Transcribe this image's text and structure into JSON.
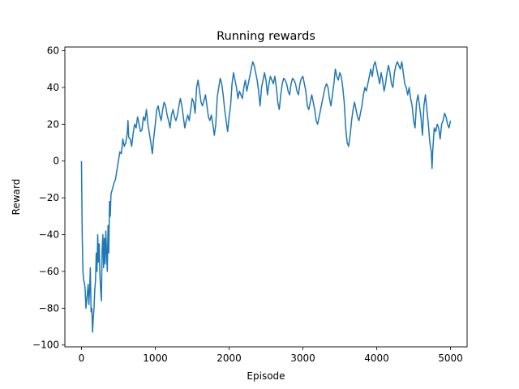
{
  "chart_data": {
    "type": "line",
    "title": "Running rewards",
    "xlabel": "Episode",
    "ylabel": "Reward",
    "xlim": [
      -225,
      5225
    ],
    "ylim": [
      -101,
      62
    ],
    "xticks": [
      0,
      1000,
      2000,
      3000,
      4000,
      5000
    ],
    "yticks": [
      -100,
      -80,
      -60,
      -40,
      -20,
      0,
      20,
      40,
      60
    ],
    "grid": false,
    "legend": "none",
    "series": [
      {
        "color": "#1f77b4",
        "points": [
          [
            0,
            0
          ],
          [
            10,
            -40
          ],
          [
            20,
            -60
          ],
          [
            30,
            -65
          ],
          [
            40,
            -66
          ],
          [
            50,
            -70
          ],
          [
            60,
            -80
          ],
          [
            70,
            -76
          ],
          [
            80,
            -72
          ],
          [
            90,
            -67
          ],
          [
            100,
            -78
          ],
          [
            110,
            -70
          ],
          [
            120,
            -58
          ],
          [
            130,
            -82
          ],
          [
            140,
            -80
          ],
          [
            150,
            -93
          ],
          [
            160,
            -85
          ],
          [
            170,
            -80
          ],
          [
            180,
            -70
          ],
          [
            190,
            -65
          ],
          [
            200,
            -50
          ],
          [
            210,
            -60
          ],
          [
            220,
            -40
          ],
          [
            230,
            -55
          ],
          [
            240,
            -45
          ],
          [
            250,
            -62
          ],
          [
            260,
            -70
          ],
          [
            270,
            -76
          ],
          [
            280,
            -48
          ],
          [
            290,
            -40
          ],
          [
            300,
            -58
          ],
          [
            310,
            -42
          ],
          [
            320,
            -56
          ],
          [
            330,
            -38
          ],
          [
            340,
            -50
          ],
          [
            350,
            -60
          ],
          [
            360,
            -35
          ],
          [
            370,
            -50
          ],
          [
            380,
            -22
          ],
          [
            390,
            -30
          ],
          [
            400,
            -18
          ],
          [
            420,
            -15
          ],
          [
            440,
            -12
          ],
          [
            460,
            -10
          ],
          [
            480,
            -5
          ],
          [
            500,
            0
          ],
          [
            520,
            5
          ],
          [
            540,
            4
          ],
          [
            560,
            12
          ],
          [
            580,
            8
          ],
          [
            600,
            10
          ],
          [
            620,
            15
          ],
          [
            630,
            22
          ],
          [
            640,
            13
          ],
          [
            660,
            12
          ],
          [
            680,
            8
          ],
          [
            700,
            15
          ],
          [
            720,
            20
          ],
          [
            740,
            18
          ],
          [
            760,
            24
          ],
          [
            780,
            20
          ],
          [
            800,
            16
          ],
          [
            820,
            17
          ],
          [
            840,
            24
          ],
          [
            860,
            22
          ],
          [
            880,
            28
          ],
          [
            900,
            20
          ],
          [
            920,
            15
          ],
          [
            940,
            10
          ],
          [
            960,
            4
          ],
          [
            980,
            13
          ],
          [
            1000,
            20
          ],
          [
            1020,
            28
          ],
          [
            1040,
            30
          ],
          [
            1060,
            25
          ],
          [
            1080,
            22
          ],
          [
            1100,
            28
          ],
          [
            1120,
            32
          ],
          [
            1140,
            30
          ],
          [
            1160,
            25
          ],
          [
            1180,
            22
          ],
          [
            1200,
            18
          ],
          [
            1220,
            25
          ],
          [
            1240,
            28
          ],
          [
            1260,
            24
          ],
          [
            1280,
            22
          ],
          [
            1300,
            25
          ],
          [
            1320,
            30
          ],
          [
            1340,
            34
          ],
          [
            1360,
            30
          ],
          [
            1380,
            24
          ],
          [
            1400,
            18
          ],
          [
            1420,
            22
          ],
          [
            1440,
            25
          ],
          [
            1460,
            22
          ],
          [
            1480,
            28
          ],
          [
            1500,
            34
          ],
          [
            1520,
            32
          ],
          [
            1540,
            26
          ],
          [
            1560,
            40
          ],
          [
            1580,
            44
          ],
          [
            1600,
            38
          ],
          [
            1620,
            32
          ],
          [
            1640,
            30
          ],
          [
            1660,
            33
          ],
          [
            1680,
            36
          ],
          [
            1700,
            30
          ],
          [
            1720,
            24
          ],
          [
            1740,
            22
          ],
          [
            1760,
            25
          ],
          [
            1780,
            20
          ],
          [
            1800,
            14
          ],
          [
            1820,
            20
          ],
          [
            1840,
            35
          ],
          [
            1860,
            40
          ],
          [
            1880,
            45
          ],
          [
            1900,
            42
          ],
          [
            1920,
            36
          ],
          [
            1940,
            28
          ],
          [
            1960,
            22
          ],
          [
            1980,
            16
          ],
          [
            2000,
            24
          ],
          [
            2020,
            30
          ],
          [
            2040,
            42
          ],
          [
            2060,
            48
          ],
          [
            2080,
            44
          ],
          [
            2100,
            40
          ],
          [
            2120,
            34
          ],
          [
            2140,
            38
          ],
          [
            2160,
            36
          ],
          [
            2180,
            34
          ],
          [
            2200,
            40
          ],
          [
            2220,
            44
          ],
          [
            2240,
            38
          ],
          [
            2260,
            42
          ],
          [
            2280,
            46
          ],
          [
            2300,
            50
          ],
          [
            2320,
            54
          ],
          [
            2340,
            52
          ],
          [
            2360,
            48
          ],
          [
            2380,
            44
          ],
          [
            2400,
            38
          ],
          [
            2420,
            30
          ],
          [
            2440,
            40
          ],
          [
            2460,
            44
          ],
          [
            2480,
            48
          ],
          [
            2500,
            44
          ],
          [
            2520,
            36
          ],
          [
            2540,
            42
          ],
          [
            2560,
            46
          ],
          [
            2580,
            44
          ],
          [
            2600,
            42
          ],
          [
            2620,
            46
          ],
          [
            2640,
            40
          ],
          [
            2660,
            32
          ],
          [
            2680,
            28
          ],
          [
            2700,
            36
          ],
          [
            2720,
            42
          ],
          [
            2740,
            45
          ],
          [
            2760,
            44
          ],
          [
            2780,
            42
          ],
          [
            2800,
            38
          ],
          [
            2820,
            36
          ],
          [
            2840,
            42
          ],
          [
            2860,
            45
          ],
          [
            2880,
            44
          ],
          [
            2900,
            42
          ],
          [
            2920,
            38
          ],
          [
            2940,
            36
          ],
          [
            2960,
            42
          ],
          [
            2980,
            45
          ],
          [
            3000,
            46
          ],
          [
            3020,
            42
          ],
          [
            3040,
            38
          ],
          [
            3060,
            30
          ],
          [
            3080,
            28
          ],
          [
            3100,
            32
          ],
          [
            3120,
            36
          ],
          [
            3140,
            32
          ],
          [
            3160,
            28
          ],
          [
            3180,
            22
          ],
          [
            3200,
            20
          ],
          [
            3220,
            24
          ],
          [
            3240,
            28
          ],
          [
            3260,
            32
          ],
          [
            3280,
            36
          ],
          [
            3300,
            40
          ],
          [
            3320,
            42
          ],
          [
            3340,
            40
          ],
          [
            3360,
            34
          ],
          [
            3380,
            30
          ],
          [
            3400,
            36
          ],
          [
            3420,
            42
          ],
          [
            3440,
            50
          ],
          [
            3460,
            46
          ],
          [
            3480,
            44
          ],
          [
            3500,
            48
          ],
          [
            3520,
            46
          ],
          [
            3540,
            40
          ],
          [
            3560,
            32
          ],
          [
            3580,
            18
          ],
          [
            3600,
            10
          ],
          [
            3620,
            8
          ],
          [
            3640,
            14
          ],
          [
            3660,
            22
          ],
          [
            3680,
            28
          ],
          [
            3700,
            32
          ],
          [
            3720,
            28
          ],
          [
            3740,
            24
          ],
          [
            3760,
            22
          ],
          [
            3780,
            26
          ],
          [
            3800,
            30
          ],
          [
            3820,
            36
          ],
          [
            3840,
            40
          ],
          [
            3860,
            38
          ],
          [
            3880,
            42
          ],
          [
            3900,
            46
          ],
          [
            3920,
            50
          ],
          [
            3940,
            46
          ],
          [
            3960,
            52
          ],
          [
            3980,
            54
          ],
          [
            4000,
            50
          ],
          [
            4020,
            46
          ],
          [
            4040,
            42
          ],
          [
            4060,
            48
          ],
          [
            4080,
            44
          ],
          [
            4100,
            38
          ],
          [
            4120,
            42
          ],
          [
            4140,
            48
          ],
          [
            4160,
            52
          ],
          [
            4180,
            48
          ],
          [
            4200,
            42
          ],
          [
            4220,
            40
          ],
          [
            4240,
            48
          ],
          [
            4260,
            52
          ],
          [
            4280,
            54
          ],
          [
            4300,
            52
          ],
          [
            4320,
            50
          ],
          [
            4340,
            54
          ],
          [
            4360,
            48
          ],
          [
            4380,
            42
          ],
          [
            4400,
            40
          ],
          [
            4420,
            36
          ],
          [
            4440,
            40
          ],
          [
            4460,
            34
          ],
          [
            4480,
            30
          ],
          [
            4500,
            22
          ],
          [
            4520,
            18
          ],
          [
            4540,
            32
          ],
          [
            4560,
            36
          ],
          [
            4580,
            30
          ],
          [
            4600,
            24
          ],
          [
            4620,
            14
          ],
          [
            4640,
            30
          ],
          [
            4660,
            36
          ],
          [
            4680,
            28
          ],
          [
            4700,
            20
          ],
          [
            4720,
            10
          ],
          [
            4740,
            5
          ],
          [
            4750,
            -4
          ],
          [
            4760,
            6
          ],
          [
            4780,
            18
          ],
          [
            4800,
            16
          ],
          [
            4820,
            20
          ],
          [
            4840,
            18
          ],
          [
            4860,
            12
          ],
          [
            4880,
            20
          ],
          [
            4900,
            22
          ],
          [
            4920,
            26
          ],
          [
            4940,
            24
          ],
          [
            4960,
            20
          ],
          [
            4980,
            18
          ],
          [
            5000,
            22
          ]
        ]
      }
    ]
  }
}
